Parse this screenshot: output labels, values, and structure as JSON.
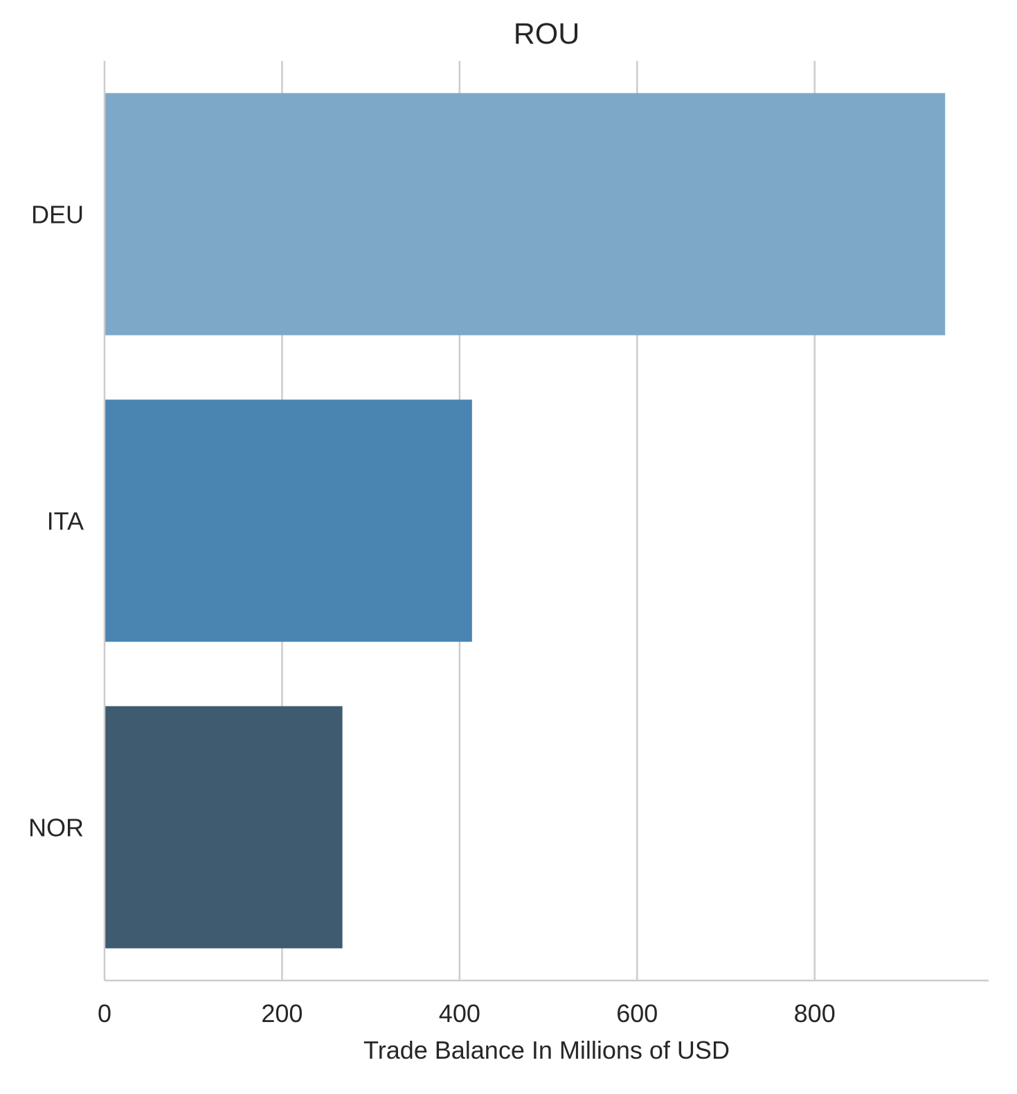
{
  "chart_data": {
    "type": "bar",
    "orientation": "horizontal",
    "title": "ROU",
    "xlabel": "Trade Balance In Millions of USD",
    "ylabel": "",
    "categories": [
      "DEU",
      "ITA",
      "NOR"
    ],
    "values": [
      947,
      414,
      268
    ],
    "colors": [
      "#7ea8c8",
      "#4a84b0",
      "#3e5b70"
    ],
    "xlim": [
      0,
      996
    ],
    "xticks": [
      0,
      200,
      400,
      600,
      800
    ],
    "xtick_labels": [
      "0",
      "200",
      "400",
      "600",
      "800"
    ],
    "grid": "vertical",
    "legend": "none"
  }
}
